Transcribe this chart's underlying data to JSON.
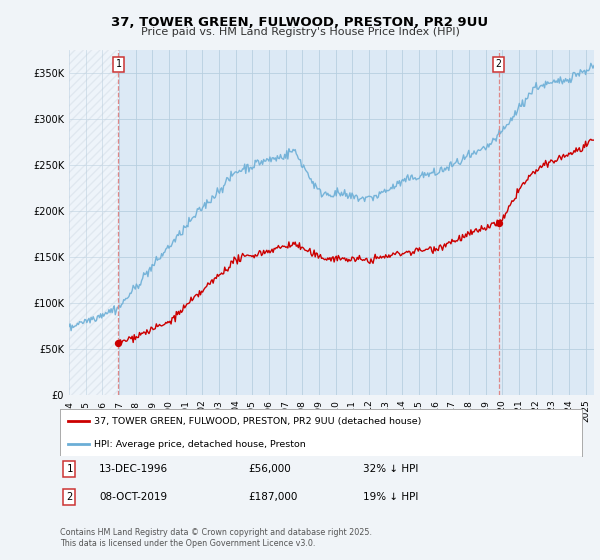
{
  "title": "37, TOWER GREEN, FULWOOD, PRESTON, PR2 9UU",
  "subtitle": "Price paid vs. HM Land Registry's House Price Index (HPI)",
  "ylim": [
    0,
    375000
  ],
  "yticks": [
    0,
    50000,
    100000,
    150000,
    200000,
    250000,
    300000,
    350000
  ],
  "hpi_color": "#6baed6",
  "price_color": "#cc0000",
  "dashed_line_color": "#dd8888",
  "marker1_x": 1996.96,
  "marker1_price": 56000,
  "marker1_label": "13-DEC-1996",
  "marker1_price_label": "£56,000",
  "marker1_hpi_label": "32% ↓ HPI",
  "marker2_x": 2019.78,
  "marker2_price": 187000,
  "marker2_label": "08-OCT-2019",
  "marker2_price_label": "£187,000",
  "marker2_hpi_label": "19% ↓ HPI",
  "legend_line1": "37, TOWER GREEN, FULWOOD, PRESTON, PR2 9UU (detached house)",
  "legend_line2": "HPI: Average price, detached house, Preston",
  "footer": "Contains HM Land Registry data © Crown copyright and database right 2025.\nThis data is licensed under the Open Government Licence v3.0.",
  "background_color": "#f0f4f8",
  "plot_bg_color": "#dce9f5",
  "grid_color": "#b8cfe0",
  "hatch_color": "#c0cdd8",
  "xmin": 1994,
  "xmax": 2025.5
}
